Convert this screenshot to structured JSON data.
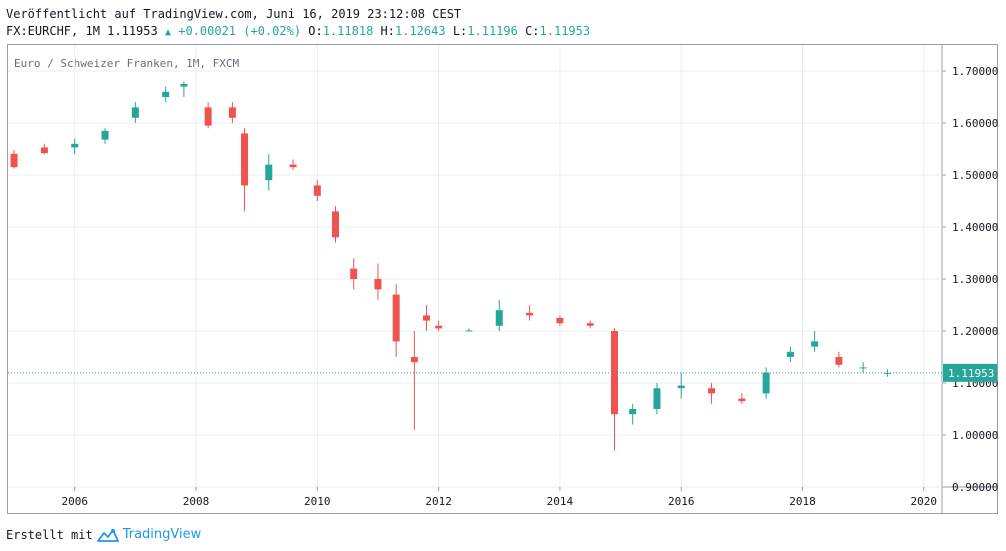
{
  "header": {
    "line1": "Veröffentlicht auf TradingView.com, Juni 16, 2019 23:12:08 CEST",
    "symbol": "FX:EURCHF, 1M 1.11953",
    "change": "+0.00021 (+0.02%)",
    "o_label": "O:",
    "o_value": "1.11818",
    "h_label": "H:",
    "h_value": "1.12643",
    "l_label": "L:",
    "l_value": "1.11196",
    "c_label": "C:",
    "c_value": "1.11953"
  },
  "footer": {
    "created_with": "Erstellt mit",
    "brand": "TradingView"
  },
  "colors": {
    "up": "#26a69a",
    "down": "#ef5350",
    "grid": "#e9ecf0",
    "axis": "#9aa0aa",
    "last_price_bg": "#26a69a"
  },
  "chart_data": {
    "type": "candlestick",
    "title": "Euro / Schweizer Franken, 1M, FXCM",
    "ylim": [
      0.9,
      1.75
    ],
    "y_ticks": [
      "0.90000",
      "1.00000",
      "1.10000",
      "1.20000",
      "1.30000",
      "1.40000",
      "1.50000",
      "1.60000",
      "1.70000"
    ],
    "x_ticks": [
      "2006",
      "2008",
      "2010",
      "2012",
      "2014",
      "2016",
      "2018",
      "2020"
    ],
    "xlim": [
      2004.9,
      2020.3
    ],
    "last_price": 1.11953,
    "last_price_label": "1.11953",
    "grid": true,
    "series": [
      {
        "name": "EURCHF",
        "points": [
          [
            2005.0,
            1.5408,
            1.548,
            1.512,
            1.515
          ],
          [
            2005.5,
            1.553,
            1.56,
            1.54,
            1.542
          ],
          [
            2006.0,
            1.553,
            1.57,
            1.54,
            1.56
          ],
          [
            2006.5,
            1.568,
            1.59,
            1.56,
            1.585
          ],
          [
            2007.0,
            1.61,
            1.64,
            1.6,
            1.63
          ],
          [
            2007.5,
            1.65,
            1.67,
            1.64,
            1.66
          ],
          [
            2007.8,
            1.67,
            1.68,
            1.65,
            1.675
          ],
          [
            2008.2,
            1.63,
            1.64,
            1.59,
            1.595
          ],
          [
            2008.6,
            1.63,
            1.64,
            1.6,
            1.61
          ],
          [
            2008.8,
            1.58,
            1.59,
            1.43,
            1.48
          ],
          [
            2009.2,
            1.49,
            1.54,
            1.47,
            1.52
          ],
          [
            2009.6,
            1.52,
            1.53,
            1.51,
            1.515
          ],
          [
            2010.0,
            1.48,
            1.49,
            1.45,
            1.46
          ],
          [
            2010.3,
            1.43,
            1.44,
            1.37,
            1.38
          ],
          [
            2010.6,
            1.32,
            1.34,
            1.28,
            1.3
          ],
          [
            2011.0,
            1.3,
            1.33,
            1.26,
            1.28
          ],
          [
            2011.3,
            1.27,
            1.29,
            1.15,
            1.18
          ],
          [
            2011.6,
            1.15,
            1.2,
            1.01,
            1.14
          ],
          [
            2011.8,
            1.23,
            1.25,
            1.2,
            1.22
          ],
          [
            2012.0,
            1.21,
            1.22,
            1.2,
            1.205
          ],
          [
            2012.5,
            1.201,
            1.205,
            1.2,
            1.201
          ],
          [
            2013.0,
            1.21,
            1.26,
            1.2,
            1.24
          ],
          [
            2013.5,
            1.235,
            1.25,
            1.22,
            1.23
          ],
          [
            2014.0,
            1.225,
            1.23,
            1.21,
            1.215
          ],
          [
            2014.5,
            1.215,
            1.22,
            1.205,
            1.21
          ],
          [
            2014.9,
            1.2,
            1.205,
            0.97,
            1.04
          ],
          [
            2015.2,
            1.04,
            1.06,
            1.02,
            1.05
          ],
          [
            2015.6,
            1.05,
            1.1,
            1.04,
            1.09
          ],
          [
            2016.0,
            1.09,
            1.12,
            1.07,
            1.095
          ],
          [
            2016.5,
            1.09,
            1.1,
            1.06,
            1.08
          ],
          [
            2017.0,
            1.07,
            1.08,
            1.06,
            1.065
          ],
          [
            2017.4,
            1.08,
            1.13,
            1.07,
            1.12
          ],
          [
            2017.8,
            1.15,
            1.17,
            1.14,
            1.16
          ],
          [
            2018.2,
            1.17,
            1.2,
            1.16,
            1.18
          ],
          [
            2018.6,
            1.15,
            1.16,
            1.13,
            1.135
          ],
          [
            2019.0,
            1.13,
            1.14,
            1.12,
            1.13
          ],
          [
            2019.4,
            1.1182,
            1.1264,
            1.112,
            1.1195
          ]
        ]
      }
    ]
  }
}
